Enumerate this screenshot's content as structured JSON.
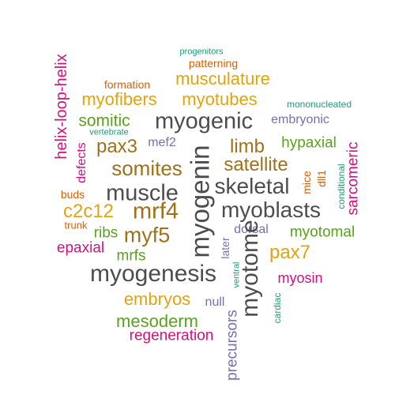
{
  "palette": {
    "gray": "#4d4d4d",
    "gold": "#e3a30d",
    "brown": "#a0711a",
    "orange": "#d95f02",
    "teal": "#1b9e77",
    "purple": "#7570b3",
    "magenta": "#d4107f",
    "green": "#59a31b"
  },
  "words": [
    {
      "text": "progenitors",
      "color": "teal"
    },
    {
      "text": "patterning",
      "color": "orange"
    },
    {
      "text": "musculature",
      "color": "gold"
    },
    {
      "text": "formation",
      "color": "orange"
    },
    {
      "text": "myofibers",
      "color": "gold"
    },
    {
      "text": "myotubes",
      "color": "gold"
    },
    {
      "text": "mononucleated",
      "color": "teal"
    },
    {
      "text": "helix-loop-helix",
      "color": "magenta"
    },
    {
      "text": "somitic",
      "color": "green"
    },
    {
      "text": "myogenic",
      "color": "gray"
    },
    {
      "text": "embryonic",
      "color": "purple"
    },
    {
      "text": "vertebrate",
      "color": "teal"
    },
    {
      "text": "pax3",
      "color": "brown"
    },
    {
      "text": "mef2",
      "color": "purple"
    },
    {
      "text": "limb",
      "color": "brown"
    },
    {
      "text": "hypaxial",
      "color": "green"
    },
    {
      "text": "defects",
      "color": "magenta"
    },
    {
      "text": "somites",
      "color": "brown"
    },
    {
      "text": "satellite",
      "color": "brown"
    },
    {
      "text": "sarcomeric",
      "color": "magenta"
    },
    {
      "text": "conditional",
      "color": "teal"
    },
    {
      "text": "myogenin",
      "color": "gray"
    },
    {
      "text": "skeletal",
      "color": "gray"
    },
    {
      "text": "mice",
      "color": "orange"
    },
    {
      "text": "dll1",
      "color": "orange"
    },
    {
      "text": "buds",
      "color": "orange"
    },
    {
      "text": "muscle",
      "color": "gray"
    },
    {
      "text": "c2c12",
      "color": "gold"
    },
    {
      "text": "mrf4",
      "color": "brown"
    },
    {
      "text": "myoblasts",
      "color": "gray"
    },
    {
      "text": "trunk",
      "color": "orange"
    },
    {
      "text": "ribs",
      "color": "green"
    },
    {
      "text": "myf5",
      "color": "brown"
    },
    {
      "text": "dorsal",
      "color": "purple"
    },
    {
      "text": "myotomal",
      "color": "green"
    },
    {
      "text": "epaxial",
      "color": "magenta"
    },
    {
      "text": "mrfs",
      "color": "green"
    },
    {
      "text": "later",
      "color": "purple"
    },
    {
      "text": "myotome",
      "color": "gray"
    },
    {
      "text": "pax7",
      "color": "gold"
    },
    {
      "text": "myogenesis",
      "color": "gray"
    },
    {
      "text": "ventral",
      "color": "teal"
    },
    {
      "text": "myosin",
      "color": "magenta"
    },
    {
      "text": "embryos",
      "color": "gold"
    },
    {
      "text": "null",
      "color": "purple"
    },
    {
      "text": "cardiac",
      "color": "teal"
    },
    {
      "text": "precursors",
      "color": "purple"
    },
    {
      "text": "mesoderm",
      "color": "green"
    },
    {
      "text": "regeneration",
      "color": "magenta"
    }
  ]
}
